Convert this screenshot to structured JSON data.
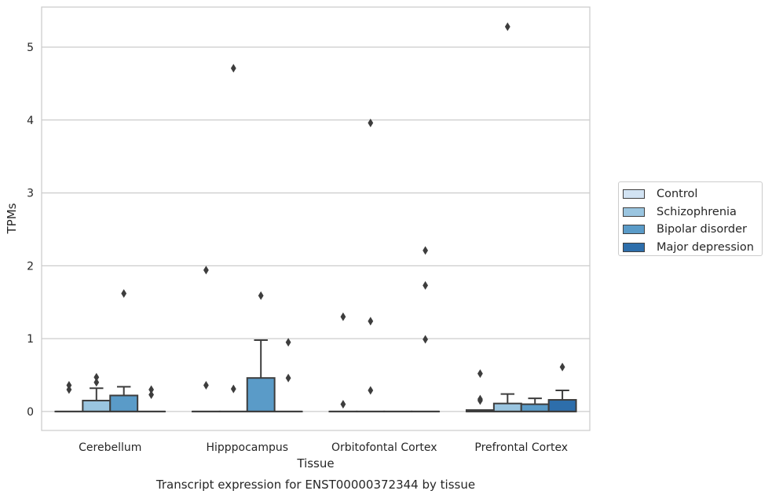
{
  "chart_data": {
    "type": "box",
    "title": "Transcript expression for ENST00000372344 by tissue",
    "xlabel": "Tissue",
    "ylabel": "TPMs",
    "ylim": [
      -0.26,
      5.55
    ],
    "yticks": [
      0,
      1,
      2,
      3,
      4,
      5
    ],
    "grid": true,
    "legend_position": "right",
    "categories": [
      "Cerebellum",
      "Hipppocampus",
      "Orbitofontal Cortex",
      "Prefrontal Cortex"
    ],
    "series": [
      {
        "name": "Control",
        "color": "#d2e3f3",
        "boxes": [
          {
            "q1": 0,
            "median": 0,
            "q3": 0,
            "whisker_low": 0,
            "whisker_high": 0,
            "outliers": [
              0.3,
              0.36
            ]
          },
          {
            "q1": 0,
            "median": 0,
            "q3": 0,
            "whisker_low": 0,
            "whisker_high": 0,
            "outliers": [
              1.94,
              0.36
            ]
          },
          {
            "q1": 0,
            "median": 0,
            "q3": 0,
            "whisker_low": 0,
            "whisker_high": 0,
            "outliers": [
              1.3,
              0.1
            ]
          },
          {
            "q1": 0,
            "median": 0,
            "q3": 0.02,
            "whisker_low": 0,
            "whisker_high": 0.02,
            "outliers": [
              0.52,
              0.17,
              0.15
            ]
          }
        ]
      },
      {
        "name": "Schizophrenia",
        "color": "#9ac5e0",
        "boxes": [
          {
            "q1": 0,
            "median": 0,
            "q3": 0.15,
            "whisker_low": 0,
            "whisker_high": 0.32,
            "outliers": [
              0.4,
              0.47
            ]
          },
          {
            "q1": 0,
            "median": 0,
            "q3": 0,
            "whisker_low": 0,
            "whisker_high": 0,
            "outliers": [
              0.31,
              4.71
            ]
          },
          {
            "q1": 0,
            "median": 0,
            "q3": 0,
            "whisker_low": 0,
            "whisker_high": 0,
            "outliers": [
              1.24,
              0.29,
              3.96
            ]
          },
          {
            "q1": 0,
            "median": 0,
            "q3": 0.11,
            "whisker_low": 0,
            "whisker_high": 0.24,
            "outliers": [
              5.28
            ]
          }
        ]
      },
      {
        "name": "Bipolar disorder",
        "color": "#5a9bc8",
        "boxes": [
          {
            "q1": 0,
            "median": 0,
            "q3": 0.22,
            "whisker_low": 0,
            "whisker_high": 0.34,
            "outliers": [
              1.62
            ]
          },
          {
            "q1": 0,
            "median": 0,
            "q3": 0.46,
            "whisker_low": 0,
            "whisker_high": 0.98,
            "outliers": [
              1.59
            ]
          },
          {
            "q1": 0,
            "median": 0,
            "q3": 0,
            "whisker_low": 0,
            "whisker_high": 0,
            "outliers": []
          },
          {
            "q1": 0,
            "median": 0,
            "q3": 0.1,
            "whisker_low": 0,
            "whisker_high": 0.18,
            "outliers": []
          }
        ]
      },
      {
        "name": "Major depression",
        "color": "#2d6eab",
        "boxes": [
          {
            "q1": 0,
            "median": 0,
            "q3": 0,
            "whisker_low": 0,
            "whisker_high": 0,
            "outliers": [
              0.3,
              0.23
            ]
          },
          {
            "q1": 0,
            "median": 0,
            "q3": 0,
            "whisker_low": 0,
            "whisker_high": 0,
            "outliers": [
              0.95,
              0.46
            ]
          },
          {
            "q1": 0,
            "median": 0,
            "q3": 0,
            "whisker_low": 0,
            "whisker_high": 0,
            "outliers": [
              2.21,
              1.73,
              0.99
            ]
          },
          {
            "q1": 0,
            "median": 0,
            "q3": 0.16,
            "whisker_low": 0,
            "whisker_high": 0.29,
            "outliers": [
              0.61
            ]
          }
        ]
      }
    ]
  }
}
